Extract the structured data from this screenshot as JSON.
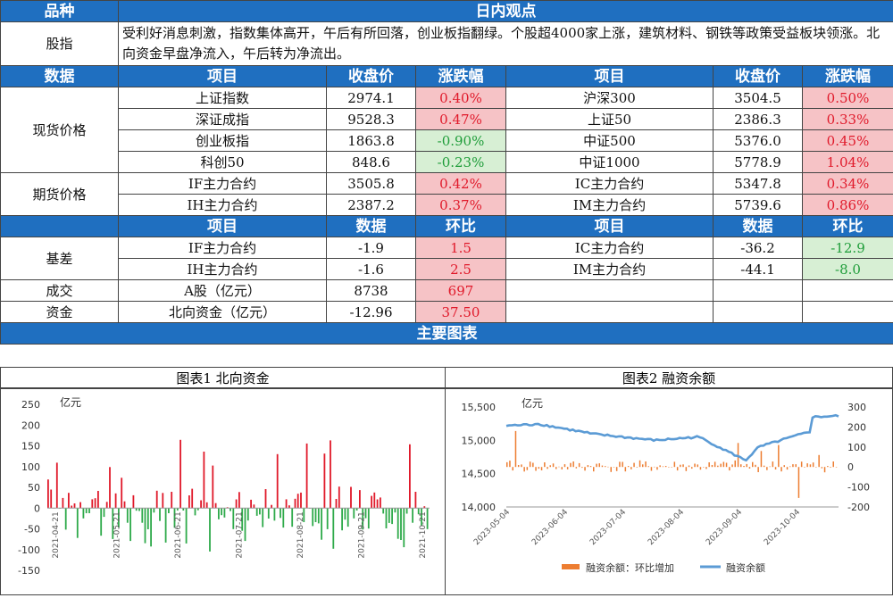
{
  "header": {
    "col1": "品种",
    "col2": "日内观点"
  },
  "summary": {
    "label": "股指",
    "text": "受利好消息刺激，指数集体高开，午后有所回落，创业板指翻绿。个股超4000家上涨，建筑材料、钢铁等政策受益板块领涨。北向资金早盘净流入，午后转为净流出。"
  },
  "price_header": [
    "数据",
    "项目",
    "收盘价",
    "涨跌幅",
    "项目",
    "收盘价",
    "涨跌幅"
  ],
  "spot": {
    "label": "现货价格",
    "rows": [
      {
        "n1": "上证指数",
        "p1": "2974.1",
        "c1": "0.40%",
        "s1": "red",
        "n2": "沪深300",
        "p2": "3504.5",
        "c2": "0.50%",
        "s2": "red"
      },
      {
        "n1": "深证成指",
        "p1": "9528.3",
        "c1": "0.47%",
        "s1": "red",
        "n2": "上证50",
        "p2": "2386.3",
        "c2": "0.33%",
        "s2": "red"
      },
      {
        "n1": "创业板指",
        "p1": "1863.8",
        "c1": "-0.90%",
        "s1": "green",
        "n2": "中证500",
        "p2": "5376.0",
        "c2": "0.45%",
        "s2": "red"
      },
      {
        "n1": "科创50",
        "p1": "848.6",
        "c1": "-0.23%",
        "s1": "green",
        "n2": "中证1000",
        "p2": "5778.9",
        "c2": "1.04%",
        "s2": "red"
      }
    ]
  },
  "futures": {
    "label": "期货价格",
    "rows": [
      {
        "n1": "IF主力合约",
        "p1": "3505.8",
        "c1": "0.42%",
        "s1": "red",
        "n2": "IC主力合约",
        "p2": "5347.8",
        "c2": "0.34%",
        "s2": "red"
      },
      {
        "n1": "IH主力合约",
        "p1": "2387.2",
        "c1": "0.37%",
        "s1": "red",
        "n2": "IM主力合约",
        "p2": "5739.6",
        "c2": "0.86%",
        "s2": "red"
      }
    ]
  },
  "basis_header": [
    "项目",
    "数据",
    "环比",
    "项目",
    "数据",
    "环比"
  ],
  "basis": {
    "label": "基差",
    "rows": [
      {
        "n1": "IF主力合约",
        "v1": "-1.9",
        "c1": "1.5",
        "s1": "red",
        "n2": "IC主力合约",
        "v2": "-36.2",
        "c2": "-12.9",
        "s2": "green"
      },
      {
        "n1": "IH主力合约",
        "v1": "-1.6",
        "c1": "2.5",
        "s1": "red",
        "n2": "IM主力合约",
        "v2": "-44.1",
        "c2": "-8.0",
        "s2": "green"
      }
    ]
  },
  "volume": {
    "label": "成交",
    "name": "A股（亿元）",
    "value": "8738",
    "change": "697"
  },
  "capital": {
    "label": "资金",
    "name": "北向资金（亿元）",
    "value": "-12.96",
    "change": "37.50"
  },
  "charts_title": "主要图表",
  "chart1": {
    "title": "图表1  北向资金",
    "unit": "亿元",
    "y_ticks": [
      "250",
      "200",
      "150",
      "100",
      "50",
      "0",
      "-50",
      "-100",
      "-150"
    ],
    "x_labels": [
      "2021-04-21",
      "2021-05-21",
      "2021-06-21",
      "2021-07-21",
      "2021-08-21",
      "2021-09-21",
      "2021-10-21"
    ]
  },
  "chart2": {
    "title": "图表2  融资余额",
    "unit": "亿元",
    "y_left_ticks": [
      "15,500",
      "15,000",
      "14,500",
      "14,000"
    ],
    "y_right_ticks": [
      "300",
      "200",
      "100",
      "0",
      "-100",
      "-200"
    ],
    "x_labels": [
      "2023-05-04",
      "2023-06-04",
      "2023-07-04",
      "2023-08-04",
      "2023-09-04",
      "2023-10-04"
    ],
    "legend_bar": "融资余额：环比增加",
    "legend_line": "融资余额",
    "bar_color": "#ed7d31",
    "line_color": "#5b9bd5"
  },
  "colors": {
    "header": "#1f6fc0",
    "up_bg": "#f6c3c6",
    "up_text": "#e0192a",
    "down_bg": "#d7efd4",
    "down_text": "#1f9d3a"
  }
}
